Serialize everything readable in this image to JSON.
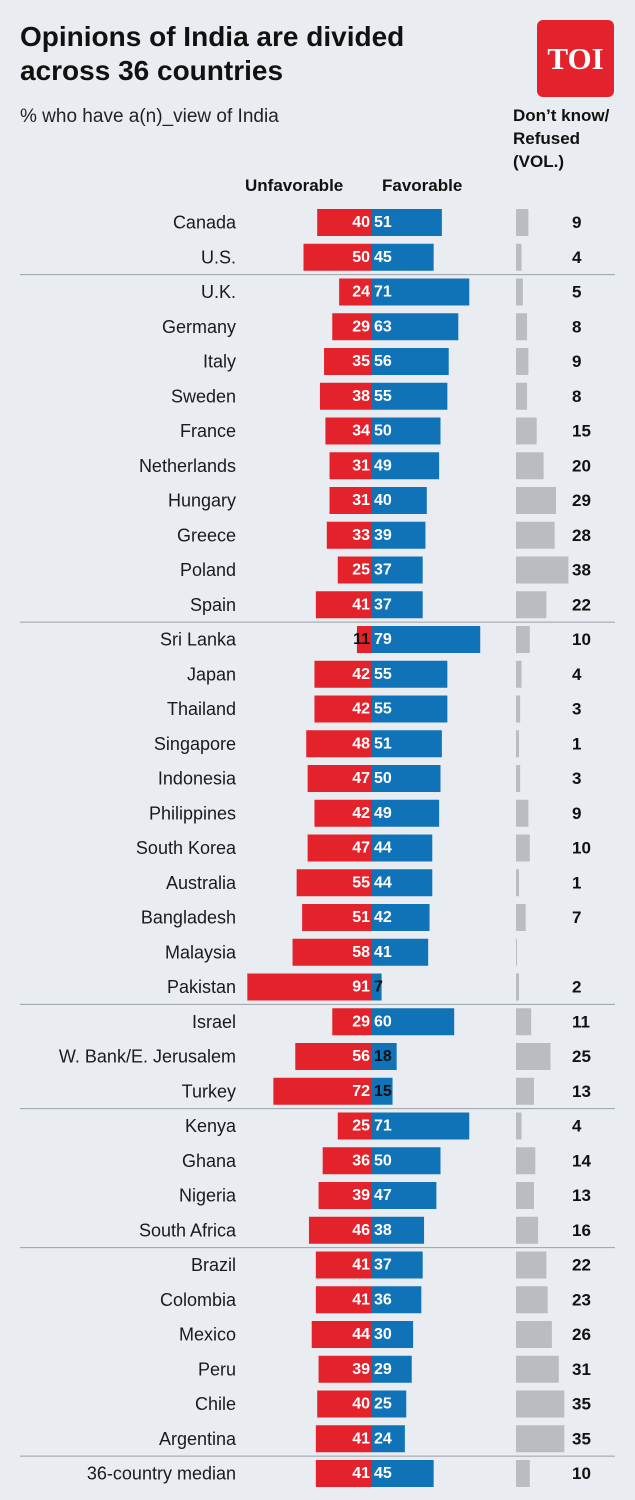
{
  "title": "Opinions of India are divided across 36 countries",
  "subtitle": "% who have a(n)_view of India",
  "logo_text": "TOI",
  "colors": {
    "unfavorable": "#e3222b",
    "favorable": "#1073b8",
    "dont_know": "#b9bcc1",
    "background": "#e9edf1",
    "separator": "#9aa0a6",
    "logo": "#e3222b"
  },
  "chart_data": {
    "type": "bar",
    "xlabel": "",
    "ylabel": "",
    "column_headers": {
      "unfavorable": "Unfavorable",
      "favorable": "Favorable",
      "dont_know": "Don’t know/ Refused (VOL.)"
    },
    "categories": [
      "Canada",
      "U.S.",
      "U.K.",
      "Germany",
      "Italy",
      "Sweden",
      "France",
      "Netherlands",
      "Hungary",
      "Greece",
      "Poland",
      "Spain",
      "Sri Lanka",
      "Japan",
      "Thailand",
      "Singapore",
      "Indonesia",
      "Philippines",
      "South Korea",
      "Australia",
      "Bangladesh",
      "Malaysia",
      "Pakistan",
      "Israel",
      "W. Bank/E. Jerusalem",
      "Turkey",
      "Kenya",
      "Ghana",
      "Nigeria",
      "South Africa",
      "Brazil",
      "Colombia",
      "Mexico",
      "Peru",
      "Chile",
      "Argentina",
      "36-country median"
    ],
    "groups_after_index": [
      1,
      11,
      22,
      25,
      29,
      35
    ],
    "series": [
      {
        "name": "Unfavorable",
        "values": [
          40,
          50,
          24,
          29,
          35,
          38,
          34,
          31,
          31,
          33,
          25,
          41,
          11,
          42,
          42,
          48,
          47,
          42,
          47,
          55,
          51,
          58,
          91,
          29,
          56,
          72,
          25,
          36,
          39,
          46,
          41,
          41,
          44,
          39,
          40,
          41,
          41
        ]
      },
      {
        "name": "Favorable",
        "values": [
          51,
          45,
          71,
          63,
          56,
          55,
          50,
          49,
          40,
          39,
          37,
          37,
          79,
          55,
          55,
          51,
          50,
          49,
          44,
          44,
          42,
          41,
          7,
          60,
          18,
          15,
          71,
          50,
          47,
          38,
          37,
          36,
          30,
          29,
          25,
          24,
          45
        ]
      },
      {
        "name": "Don’t know/ Refused (VOL.)",
        "values": [
          9,
          4,
          5,
          8,
          9,
          8,
          15,
          20,
          29,
          28,
          38,
          22,
          10,
          4,
          3,
          1,
          3,
          9,
          10,
          1,
          7,
          null,
          2,
          11,
          25,
          13,
          4,
          14,
          13,
          16,
          22,
          23,
          26,
          31,
          35,
          35,
          10
        ]
      }
    ]
  }
}
